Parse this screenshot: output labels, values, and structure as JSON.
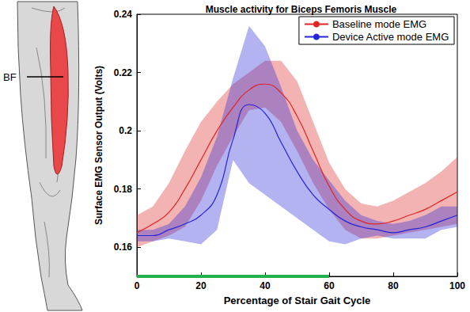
{
  "chart_data": {
    "type": "line",
    "title": "Muscle activity for Biceps Femoris Muscle",
    "x_label": "Percentage of Stair Gait Cycle",
    "y_label": "Surface EMG Sensor Output (Volts)",
    "x": [
      0,
      5,
      10,
      15,
      20,
      25,
      30,
      35,
      40,
      45,
      50,
      55,
      60,
      65,
      70,
      75,
      80,
      85,
      90,
      95,
      100
    ],
    "series": [
      {
        "name": "Baseline mode EMG",
        "color": "#e02424",
        "values": [
          0.165,
          0.168,
          0.172,
          0.18,
          0.19,
          0.2,
          0.208,
          0.214,
          0.216,
          0.213,
          0.205,
          0.193,
          0.181,
          0.173,
          0.169,
          0.168,
          0.169,
          0.171,
          0.173,
          0.176,
          0.179
        ],
        "upper": [
          0.171,
          0.174,
          0.182,
          0.193,
          0.203,
          0.21,
          0.216,
          0.22,
          0.224,
          0.224,
          0.217,
          0.203,
          0.189,
          0.18,
          0.175,
          0.174,
          0.176,
          0.179,
          0.182,
          0.186,
          0.191
        ],
        "lower": [
          0.16,
          0.162,
          0.164,
          0.167,
          0.176,
          0.188,
          0.198,
          0.207,
          0.208,
          0.203,
          0.193,
          0.182,
          0.173,
          0.166,
          0.163,
          0.163,
          0.164,
          0.165,
          0.166,
          0.167,
          0.168
        ]
      },
      {
        "name": "Device Active mode EMG",
        "color": "#2424d8",
        "values": [
          0.164,
          0.164,
          0.166,
          0.168,
          0.171,
          0.178,
          0.197,
          0.209,
          0.206,
          0.196,
          0.186,
          0.178,
          0.173,
          0.169,
          0.167,
          0.166,
          0.165,
          0.166,
          0.167,
          0.169,
          0.171
        ],
        "upper": [
          0.166,
          0.166,
          0.168,
          0.174,
          0.184,
          0.198,
          0.218,
          0.236,
          0.229,
          0.215,
          0.2,
          0.19,
          0.183,
          0.176,
          0.171,
          0.169,
          0.168,
          0.169,
          0.171,
          0.174,
          0.174
        ],
        "lower": [
          0.162,
          0.162,
          0.163,
          0.162,
          0.161,
          0.166,
          0.19,
          0.182,
          0.178,
          0.174,
          0.17,
          0.166,
          0.162,
          0.161,
          0.163,
          0.164,
          0.163,
          0.163,
          0.163,
          0.166,
          0.167
        ]
      }
    ],
    "green_bar": {
      "x": [
        0,
        60
      ],
      "y": 0.15,
      "color": "#22b14c"
    },
    "annotations": [
      "BF"
    ],
    "xlim": [
      0,
      100
    ],
    "xticks": [
      0,
      20,
      40,
      60,
      80,
      100
    ],
    "ylim": [
      0.15,
      0.24
    ],
    "yticks": [
      0.16,
      0.18,
      0.2,
      0.22,
      0.24
    ],
    "grid": false,
    "legend": "upper right"
  }
}
